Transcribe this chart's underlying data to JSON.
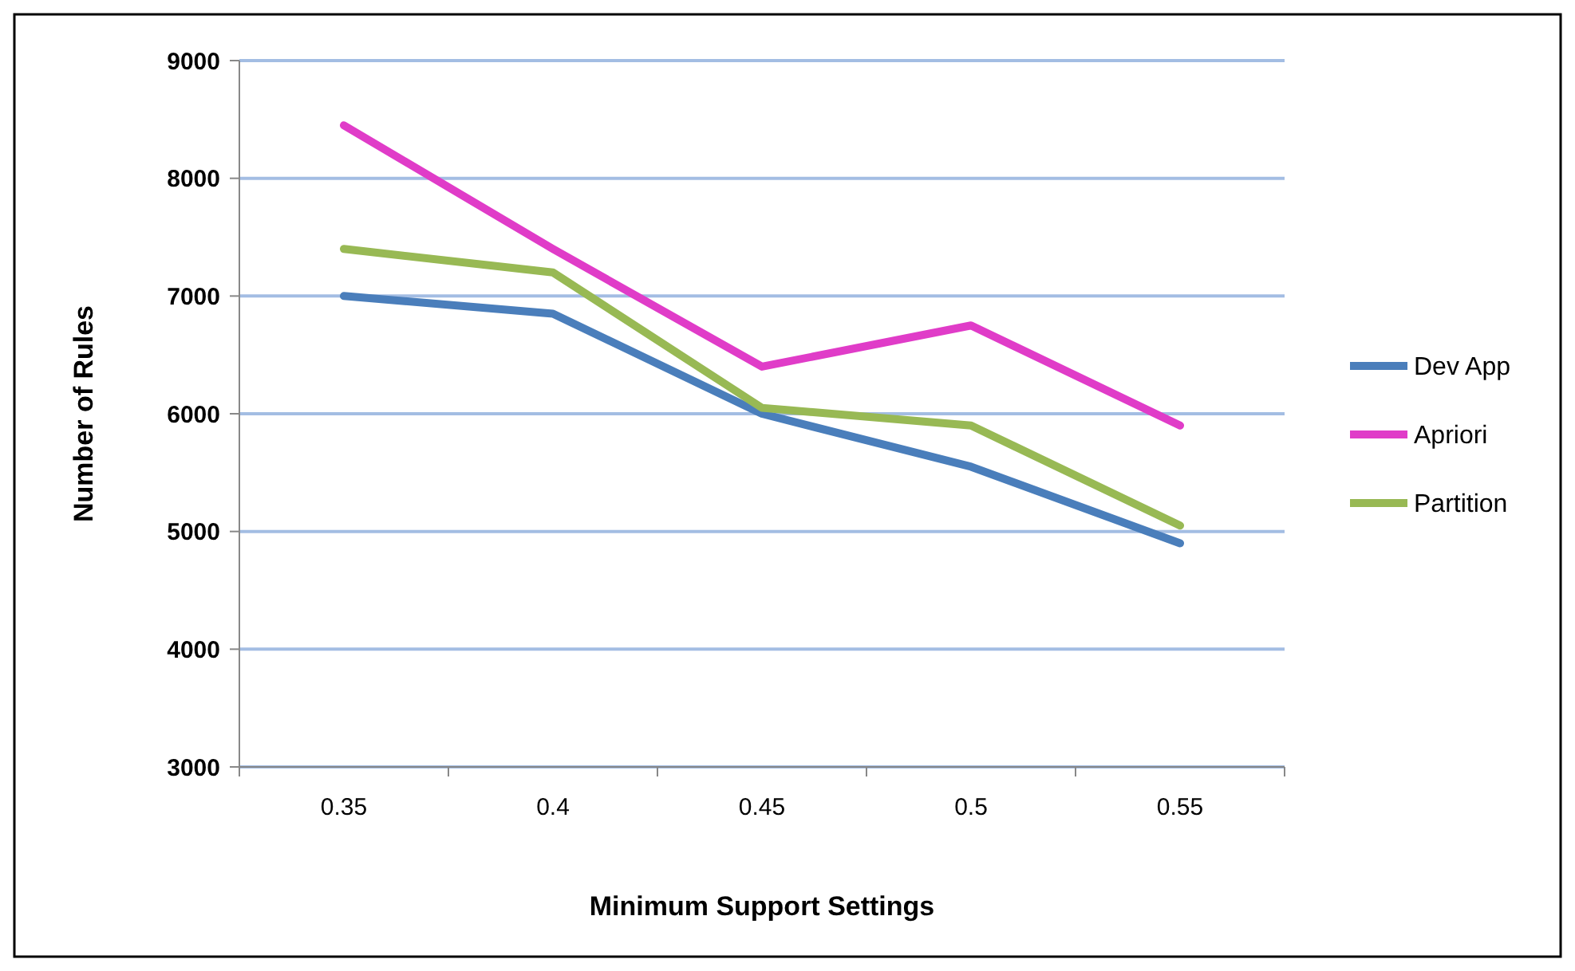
{
  "chart_data": {
    "type": "line",
    "xlabel": "Minimum Support Settings",
    "ylabel": "Number of Rules",
    "categories": [
      "0.35",
      "0.4",
      "0.45",
      "0.5",
      "0.55"
    ],
    "series": [
      {
        "name": "Dev App",
        "color": "#4a7ebb",
        "values": [
          7000,
          6850,
          6000,
          5550,
          4900
        ]
      },
      {
        "name": "Apriori",
        "color": "#e03cc8",
        "values": [
          8450,
          7400,
          6400,
          6750,
          5900
        ]
      },
      {
        "name": "Partition",
        "color": "#98b954",
        "values": [
          7400,
          7200,
          6050,
          5900,
          5050
        ]
      }
    ],
    "ylim": [
      3000,
      9000
    ],
    "yticks": [
      3000,
      4000,
      5000,
      6000,
      7000,
      8000,
      9000
    ],
    "grid": "y",
    "legend": "right",
    "marker": "none",
    "line_style": "solid"
  }
}
